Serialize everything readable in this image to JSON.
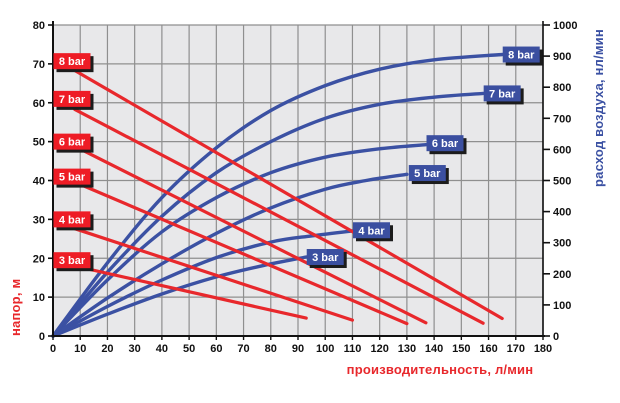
{
  "chart_data": {
    "type": "line",
    "title": "",
    "xlabel": "производительность, л/мин",
    "ylabel_left": "напор, м",
    "ylabel_right": "расход воздуха, нл/мин",
    "xlim": [
      0,
      180
    ],
    "ylim_left": [
      0,
      80
    ],
    "ylim_right": [
      0,
      1000
    ],
    "x_ticks": [
      0,
      10,
      20,
      30,
      40,
      50,
      60,
      70,
      80,
      90,
      100,
      110,
      120,
      130,
      140,
      150,
      160,
      170,
      180
    ],
    "y_left_ticks": [
      0,
      10,
      20,
      30,
      40,
      50,
      60,
      70,
      80
    ],
    "y_right_ticks": [
      0,
      100,
      200,
      300,
      400,
      500,
      600,
      700,
      800,
      900,
      1000
    ],
    "grid": true,
    "legend_position": "inline-labels",
    "colors": {
      "head_line": "#e8282c",
      "head_label_bg": "#ee1c25",
      "air_line": "#3b51a3",
      "air_label_bg": "#3b4fa0",
      "label_text": "#ffffff",
      "label_shadow": "#1c1c1c",
      "grid": "#8f8f8f",
      "plot_bg": "#e8e8ea",
      "axis": "#111111",
      "tick_text": "#111111"
    },
    "head_series_axis": "left (напор, м)",
    "head_series": [
      {
        "name": "3 bar",
        "points": [
          [
            8,
            18.0
          ],
          [
            93,
            4.6
          ]
        ],
        "label_center": [
          6.3,
          19.5
        ]
      },
      {
        "name": "4 bar",
        "points": [
          [
            8,
            27.6
          ],
          [
            110,
            4.1
          ]
        ],
        "label_center": [
          6.3,
          30.0
        ]
      },
      {
        "name": "5 bar",
        "points": [
          [
            8,
            39.6
          ],
          [
            130,
            3.2
          ]
        ],
        "label_center": [
          6.3,
          41.0
        ]
      },
      {
        "name": "6 bar",
        "points": [
          [
            8,
            48.8
          ],
          [
            137,
            3.4
          ]
        ],
        "label_center": [
          6.3,
          50.0
        ]
      },
      {
        "name": "7 bar",
        "points": [
          [
            8,
            58.3
          ],
          [
            158,
            3.3
          ]
        ],
        "label_center": [
          6.3,
          61.0
        ]
      },
      {
        "name": "8 bar",
        "points": [
          [
            8,
            68.3
          ],
          [
            165,
            4.5
          ]
        ],
        "label_center": [
          6.3,
          70.7
        ]
      }
    ],
    "air_series_axis": "right (расход воздуха, нл/мин)",
    "air_series": [
      {
        "name": "3 bar",
        "points": [
          [
            0,
            0
          ],
          [
            20,
            70
          ],
          [
            40,
            135
          ],
          [
            60,
            190
          ],
          [
            78,
            228
          ],
          [
            93,
            254
          ]
        ],
        "label_center": [
          100,
          254
        ]
      },
      {
        "name": "4 bar",
        "points": [
          [
            0,
            0
          ],
          [
            20,
            95
          ],
          [
            40,
            180
          ],
          [
            60,
            252
          ],
          [
            80,
            302
          ],
          [
            95,
            322
          ],
          [
            110,
            338
          ]
        ],
        "label_center": [
          117,
          340
        ]
      },
      {
        "name": "5 bar",
        "points": [
          [
            0,
            0
          ],
          [
            20,
            122
          ],
          [
            40,
            232
          ],
          [
            60,
            330
          ],
          [
            80,
            412
          ],
          [
            100,
            472
          ],
          [
            115,
            500
          ],
          [
            130,
            520
          ]
        ],
        "label_center": [
          137.5,
          524
        ]
      },
      {
        "name": "6 bar",
        "points": [
          [
            0,
            0
          ],
          [
            20,
            180
          ],
          [
            40,
            335
          ],
          [
            60,
            445
          ],
          [
            80,
            525
          ],
          [
            100,
            575
          ],
          [
            120,
            602
          ],
          [
            137,
            615
          ]
        ],
        "label_center": [
          144,
          620
        ]
      },
      {
        "name": "7 bar",
        "points": [
          [
            0,
            0
          ],
          [
            20,
            205
          ],
          [
            40,
            385
          ],
          [
            60,
            525
          ],
          [
            80,
            625
          ],
          [
            100,
            700
          ],
          [
            120,
            745
          ],
          [
            140,
            768
          ],
          [
            158,
            780
          ]
        ],
        "label_center": [
          165,
          780
        ]
      },
      {
        "name": "8 bar",
        "points": [
          [
            0,
            0
          ],
          [
            20,
            235
          ],
          [
            40,
            445
          ],
          [
            60,
            605
          ],
          [
            80,
            725
          ],
          [
            100,
            805
          ],
          [
            120,
            858
          ],
          [
            140,
            888
          ],
          [
            165,
            905
          ]
        ],
        "label_center": [
          172,
          905
        ]
      }
    ]
  }
}
